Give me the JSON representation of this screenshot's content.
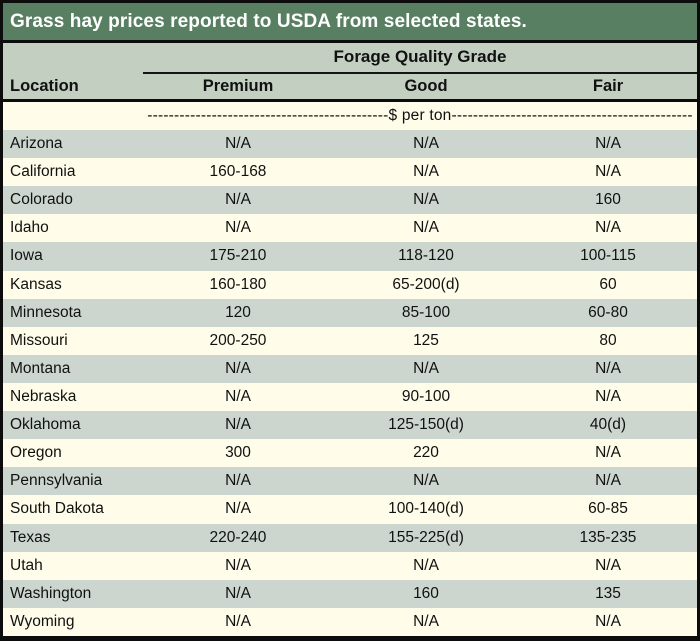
{
  "chart_data": {
    "type": "table",
    "title": "Grass hay prices reported to USDA from selected states.",
    "group_header": "Forage Quality Grade",
    "unit_label": "$ per ton",
    "unit_row_text": "---------------------------------------------$ per ton---------------------------------------------",
    "columns": {
      "location": "Location",
      "premium": "Premium",
      "good": "Good",
      "fair": "Fair"
    },
    "rows": [
      {
        "location": "Arizona",
        "premium": "N/A",
        "good": "N/A",
        "fair": "N/A"
      },
      {
        "location": "California",
        "premium": "160-168",
        "good": "N/A",
        "fair": "N/A"
      },
      {
        "location": "Colorado",
        "premium": "N/A",
        "good": "N/A",
        "fair": "160"
      },
      {
        "location": "Idaho",
        "premium": "N/A",
        "good": "N/A",
        "fair": "N/A"
      },
      {
        "location": "Iowa",
        "premium": "175-210",
        "good": "118-120",
        "fair": "100-115"
      },
      {
        "location": "Kansas",
        "premium": "160-180",
        "good": "65-200(d)",
        "fair": "60"
      },
      {
        "location": "Minnesota",
        "premium": "120",
        "good": "85-100",
        "fair": "60-80"
      },
      {
        "location": "Missouri",
        "premium": "200-250",
        "good": "125",
        "fair": "80"
      },
      {
        "location": "Montana",
        "premium": "N/A",
        "good": "N/A",
        "fair": "N/A"
      },
      {
        "location": "Nebraska",
        "premium": "N/A",
        "good": "90-100",
        "fair": "N/A"
      },
      {
        "location": "Oklahoma",
        "premium": "N/A",
        "good": "125-150(d)",
        "fair": "40(d)"
      },
      {
        "location": "Oregon",
        "premium": "300",
        "good": "220",
        "fair": "N/A"
      },
      {
        "location": "Pennsylvania",
        "premium": "N/A",
        "good": "N/A",
        "fair": "N/A"
      },
      {
        "location": "South Dakota",
        "premium": "N/A",
        "good": "100-140(d)",
        "fair": "60-85"
      },
      {
        "location": "Texas",
        "premium": "220-240",
        "good": "155-225(d)",
        "fair": "135-235"
      },
      {
        "location": "Utah",
        "premium": "N/A",
        "good": "N/A",
        "fair": "N/A"
      },
      {
        "location": "Washington",
        "premium": "N/A",
        "good": "160",
        "fair": "135"
      },
      {
        "location": "Wyoming",
        "premium": "N/A",
        "good": "N/A",
        "fair": "N/A"
      }
    ]
  },
  "colors": {
    "title_bg": "#587f62",
    "header_bg": "#c2cfc1",
    "row_shade": "#ccd6ce",
    "row_cream": "#fffce9",
    "border": "#0c0c0c"
  }
}
